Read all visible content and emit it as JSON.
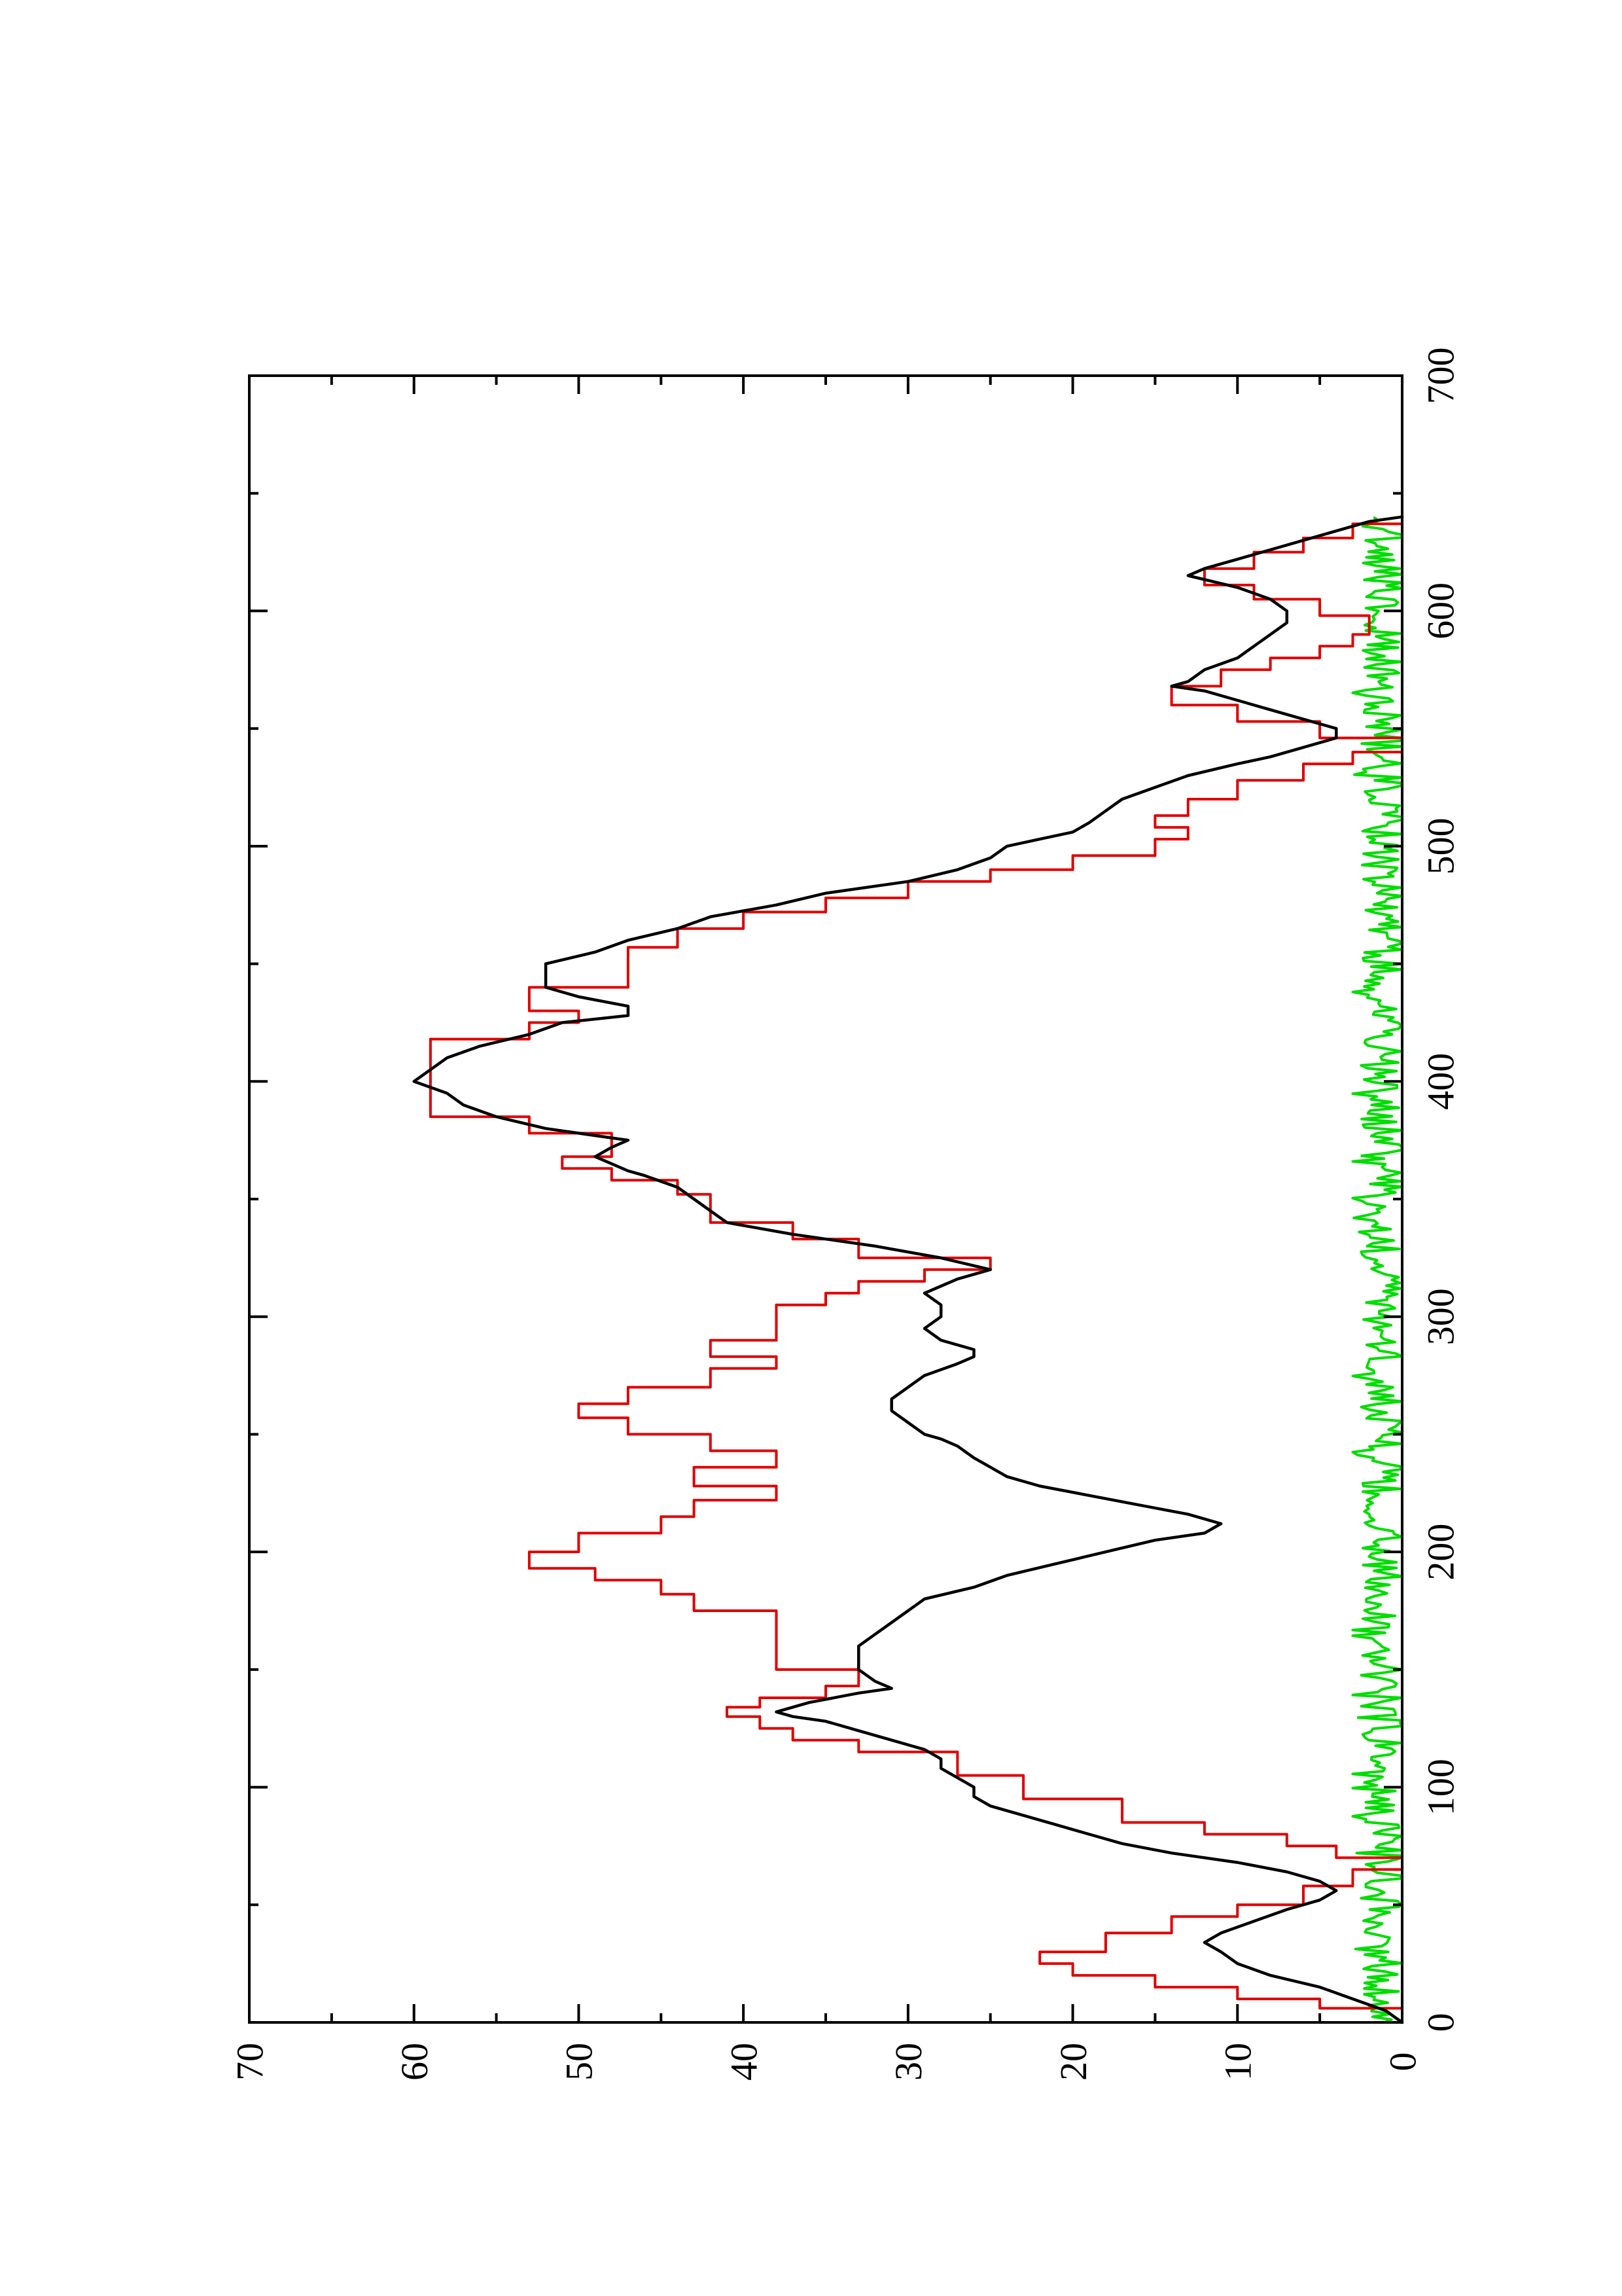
{
  "chart_data": {
    "type": "line",
    "title": "",
    "xlabel": "",
    "ylabel": "",
    "orientation": "rotated 90 degrees counter-clockwise (x axis drawn vertically on the right, y axis drawn horizontally along the bottom)",
    "xlim": [
      0,
      700
    ],
    "ylim": [
      0,
      70
    ],
    "x_ticks": [
      0,
      100,
      200,
      300,
      400,
      500,
      600,
      700
    ],
    "y_ticks": [
      0,
      10,
      20,
      30,
      40,
      50,
      60,
      70
    ],
    "x_tick_labels": [
      "0",
      "100",
      "200",
      "300",
      "400",
      "500",
      "600",
      "700"
    ],
    "y_tick_labels": [
      "0",
      "10",
      "20",
      "30",
      "40",
      "50",
      "60",
      "70"
    ],
    "grid": false,
    "legend": "none",
    "series": [
      {
        "color": "#e00000",
        "style": "step",
        "points": [
          [
            0,
            0
          ],
          [
            6,
            0
          ],
          [
            6,
            5
          ],
          [
            10,
            5
          ],
          [
            10,
            10
          ],
          [
            15,
            10
          ],
          [
            15,
            15
          ],
          [
            20,
            15
          ],
          [
            20,
            20
          ],
          [
            25,
            20
          ],
          [
            25,
            22
          ],
          [
            30,
            22
          ],
          [
            30,
            18
          ],
          [
            38,
            18
          ],
          [
            38,
            14
          ],
          [
            45,
            14
          ],
          [
            45,
            10
          ],
          [
            50,
            10
          ],
          [
            50,
            6
          ],
          [
            58,
            6
          ],
          [
            58,
            3
          ],
          [
            65,
            3
          ],
          [
            65,
            0
          ],
          [
            70,
            0
          ],
          [
            70,
            4
          ],
          [
            75,
            4
          ],
          [
            75,
            7
          ],
          [
            80,
            7
          ],
          [
            80,
            12
          ],
          [
            85,
            12
          ],
          [
            85,
            17
          ],
          [
            95,
            17
          ],
          [
            95,
            23
          ],
          [
            105,
            23
          ],
          [
            105,
            27
          ],
          [
            115,
            27
          ],
          [
            115,
            33
          ],
          [
            120,
            33
          ],
          [
            120,
            37
          ],
          [
            125,
            37
          ],
          [
            125,
            39
          ],
          [
            130,
            39
          ],
          [
            130,
            41
          ],
          [
            134,
            41
          ],
          [
            134,
            39
          ],
          [
            138,
            39
          ],
          [
            138,
            35
          ],
          [
            143,
            35
          ],
          [
            143,
            33
          ],
          [
            150,
            33
          ],
          [
            150,
            38
          ],
          [
            175,
            38
          ],
          [
            175,
            43
          ],
          [
            182,
            43
          ],
          [
            182,
            45
          ],
          [
            188,
            45
          ],
          [
            188,
            49
          ],
          [
            193,
            49
          ],
          [
            193,
            53
          ],
          [
            200,
            53
          ],
          [
            200,
            50
          ],
          [
            208,
            50
          ],
          [
            208,
            45
          ],
          [
            215,
            45
          ],
          [
            215,
            43
          ],
          [
            222,
            43
          ],
          [
            222,
            38
          ],
          [
            228,
            38
          ],
          [
            228,
            43
          ],
          [
            236,
            43
          ],
          [
            236,
            38
          ],
          [
            243,
            38
          ],
          [
            243,
            42
          ],
          [
            250,
            42
          ],
          [
            250,
            47
          ],
          [
            257,
            47
          ],
          [
            257,
            50
          ],
          [
            263,
            50
          ],
          [
            263,
            47
          ],
          [
            270,
            47
          ],
          [
            270,
            42
          ],
          [
            278,
            42
          ],
          [
            278,
            38
          ],
          [
            283,
            38
          ],
          [
            283,
            42
          ],
          [
            290,
            42
          ],
          [
            290,
            38
          ],
          [
            305,
            38
          ],
          [
            305,
            35
          ],
          [
            310,
            35
          ],
          [
            310,
            33
          ],
          [
            315,
            33
          ],
          [
            315,
            29
          ],
          [
            320,
            29
          ],
          [
            320,
            25
          ],
          [
            325,
            25
          ],
          [
            325,
            33
          ],
          [
            333,
            33
          ],
          [
            333,
            37
          ],
          [
            340,
            37
          ],
          [
            340,
            42
          ],
          [
            352,
            42
          ],
          [
            352,
            44
          ],
          [
            358,
            44
          ],
          [
            358,
            48
          ],
          [
            363,
            48
          ],
          [
            363,
            51
          ],
          [
            368,
            51
          ],
          [
            368,
            48
          ],
          [
            378,
            48
          ],
          [
            378,
            53
          ],
          [
            385,
            53
          ],
          [
            385,
            59
          ],
          [
            418,
            59
          ],
          [
            418,
            53
          ],
          [
            425,
            53
          ],
          [
            425,
            50
          ],
          [
            430,
            50
          ],
          [
            430,
            53
          ],
          [
            440,
            53
          ],
          [
            440,
            47
          ],
          [
            457,
            47
          ],
          [
            457,
            44
          ],
          [
            465,
            44
          ],
          [
            465,
            40
          ],
          [
            472,
            40
          ],
          [
            472,
            35
          ],
          [
            478,
            35
          ],
          [
            478,
            30
          ],
          [
            485,
            30
          ],
          [
            485,
            25
          ],
          [
            490,
            25
          ],
          [
            490,
            20
          ],
          [
            496,
            20
          ],
          [
            496,
            15
          ],
          [
            503,
            15
          ],
          [
            503,
            13
          ],
          [
            508,
            13
          ],
          [
            508,
            15
          ],
          [
            513,
            15
          ],
          [
            513,
            13
          ],
          [
            520,
            13
          ],
          [
            520,
            10
          ],
          [
            528,
            10
          ],
          [
            528,
            6
          ],
          [
            535,
            6
          ],
          [
            535,
            3
          ],
          [
            540,
            3
          ],
          [
            540,
            0
          ],
          [
            546,
            0
          ],
          [
            546,
            5
          ],
          [
            553,
            5
          ],
          [
            553,
            10
          ],
          [
            560,
            10
          ],
          [
            560,
            14
          ],
          [
            568,
            14
          ],
          [
            568,
            11
          ],
          [
            575,
            11
          ],
          [
            575,
            8
          ],
          [
            580,
            8
          ],
          [
            580,
            5
          ],
          [
            585,
            5
          ],
          [
            585,
            3
          ],
          [
            590,
            3
          ],
          [
            590,
            2
          ],
          [
            598,
            2
          ],
          [
            598,
            5
          ],
          [
            605,
            5
          ],
          [
            605,
            9
          ],
          [
            611,
            9
          ],
          [
            611,
            12
          ],
          [
            618,
            12
          ],
          [
            618,
            9
          ],
          [
            625,
            9
          ],
          [
            625,
            6
          ],
          [
            631,
            6
          ],
          [
            631,
            3
          ],
          [
            637,
            3
          ],
          [
            637,
            0
          ],
          [
            640,
            0
          ]
        ]
      },
      {
        "color": "#000000",
        "style": "line",
        "points": [
          [
            0,
            0
          ],
          [
            5,
            1
          ],
          [
            10,
            3
          ],
          [
            15,
            5
          ],
          [
            20,
            8
          ],
          [
            25,
            10
          ],
          [
            30,
            11
          ],
          [
            34,
            12
          ],
          [
            38,
            11
          ],
          [
            43,
            9
          ],
          [
            48,
            7
          ],
          [
            52,
            5
          ],
          [
            56,
            4
          ],
          [
            60,
            5
          ],
          [
            64,
            7
          ],
          [
            68,
            10
          ],
          [
            72,
            14
          ],
          [
            76,
            17
          ],
          [
            80,
            19
          ],
          [
            84,
            21
          ],
          [
            88,
            23
          ],
          [
            92,
            25
          ],
          [
            96,
            26
          ],
          [
            100,
            26
          ],
          [
            104,
            27
          ],
          [
            108,
            28
          ],
          [
            112,
            28
          ],
          [
            116,
            29
          ],
          [
            120,
            31
          ],
          [
            124,
            33
          ],
          [
            128,
            35
          ],
          [
            130,
            37
          ],
          [
            132,
            38
          ],
          [
            136,
            36
          ],
          [
            140,
            33
          ],
          [
            142,
            31
          ],
          [
            145,
            32
          ],
          [
            150,
            33
          ],
          [
            155,
            33
          ],
          [
            160,
            33
          ],
          [
            165,
            32
          ],
          [
            170,
            31
          ],
          [
            175,
            30
          ],
          [
            180,
            29
          ],
          [
            185,
            26
          ],
          [
            190,
            24
          ],
          [
            195,
            21
          ],
          [
            200,
            18
          ],
          [
            205,
            15
          ],
          [
            208,
            12
          ],
          [
            212,
            11
          ],
          [
            216,
            13
          ],
          [
            220,
            16
          ],
          [
            224,
            19
          ],
          [
            228,
            22
          ],
          [
            232,
            24
          ],
          [
            236,
            25
          ],
          [
            240,
            26
          ],
          [
            245,
            27
          ],
          [
            248,
            28
          ],
          [
            250,
            29
          ],
          [
            255,
            30
          ],
          [
            260,
            31
          ],
          [
            265,
            31
          ],
          [
            270,
            30
          ],
          [
            275,
            29
          ],
          [
            280,
            27
          ],
          [
            283,
            26
          ],
          [
            286,
            26
          ],
          [
            290,
            28
          ],
          [
            295,
            29
          ],
          [
            300,
            28
          ],
          [
            305,
            28
          ],
          [
            310,
            29
          ],
          [
            313,
            28
          ],
          [
            316,
            27
          ],
          [
            320,
            25
          ],
          [
            325,
            28
          ],
          [
            330,
            32
          ],
          [
            335,
            37
          ],
          [
            340,
            41
          ],
          [
            345,
            42
          ],
          [
            350,
            43
          ],
          [
            355,
            44
          ],
          [
            360,
            46
          ],
          [
            362,
            47
          ],
          [
            365,
            48
          ],
          [
            368,
            49
          ],
          [
            372,
            48
          ],
          [
            375,
            47
          ],
          [
            378,
            50
          ],
          [
            380,
            52
          ],
          [
            385,
            55
          ],
          [
            390,
            57
          ],
          [
            395,
            58
          ],
          [
            400,
            60
          ],
          [
            405,
            59
          ],
          [
            410,
            58
          ],
          [
            415,
            56
          ],
          [
            420,
            53
          ],
          [
            425,
            51
          ],
          [
            428,
            47
          ],
          [
            432,
            47
          ],
          [
            436,
            50
          ],
          [
            440,
            52
          ],
          [
            445,
            52
          ],
          [
            450,
            52
          ],
          [
            455,
            49
          ],
          [
            460,
            47
          ],
          [
            465,
            44
          ],
          [
            470,
            42
          ],
          [
            475,
            38
          ],
          [
            480,
            35
          ],
          [
            485,
            30
          ],
          [
            490,
            27
          ],
          [
            495,
            25
          ],
          [
            500,
            24
          ],
          [
            503,
            22
          ],
          [
            506,
            20
          ],
          [
            510,
            19
          ],
          [
            515,
            18
          ],
          [
            520,
            17
          ],
          [
            525,
            15
          ],
          [
            530,
            13
          ],
          [
            535,
            10
          ],
          [
            538,
            8
          ],
          [
            542,
            6
          ],
          [
            546,
            4
          ],
          [
            550,
            4
          ],
          [
            554,
            6
          ],
          [
            558,
            8
          ],
          [
            562,
            10
          ],
          [
            566,
            12
          ],
          [
            568,
            14
          ],
          [
            570,
            13
          ],
          [
            575,
            12
          ],
          [
            580,
            10
          ],
          [
            585,
            9
          ],
          [
            590,
            8
          ],
          [
            595,
            7
          ],
          [
            600,
            7
          ],
          [
            605,
            8
          ],
          [
            610,
            10
          ],
          [
            615,
            13
          ],
          [
            618,
            12
          ],
          [
            622,
            10
          ],
          [
            626,
            8
          ],
          [
            630,
            6
          ],
          [
            634,
            4
          ],
          [
            638,
            2
          ],
          [
            640,
            0
          ]
        ]
      },
      {
        "color": "#00dd00",
        "style": "line",
        "amplitude_range": [
          0,
          3
        ],
        "mean": 1.2,
        "x_range": [
          0,
          640
        ]
      }
    ]
  }
}
